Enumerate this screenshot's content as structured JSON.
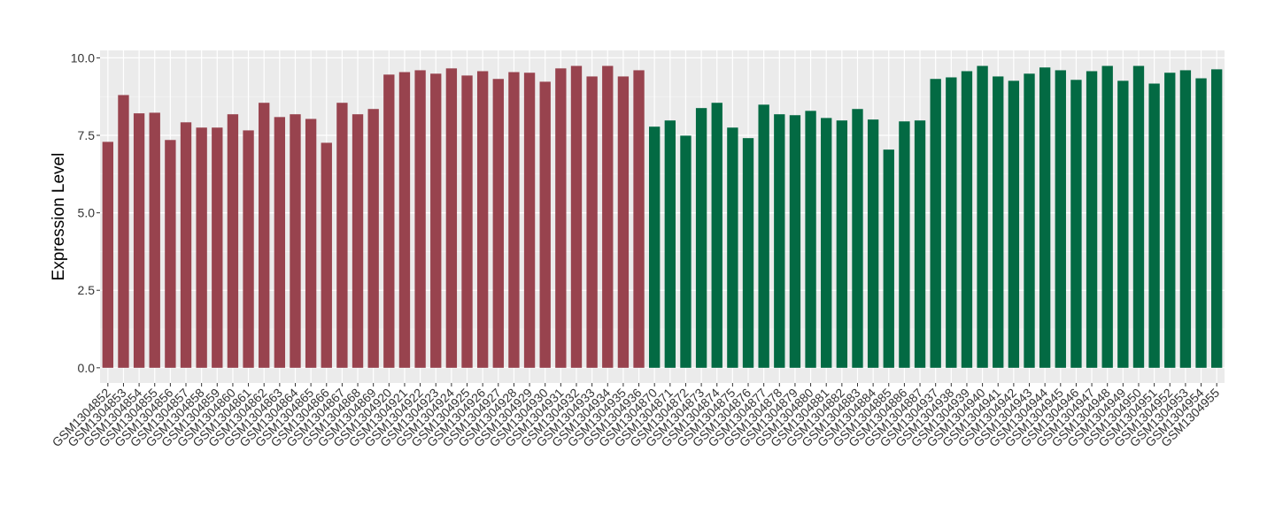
{
  "chart_data": {
    "type": "bar",
    "y_label": "Expression Level",
    "categories": [
      "GSM1304852",
      "GSM1304853",
      "GSM1304854",
      "GSM1304855",
      "GSM1304856",
      "GSM1304857",
      "GSM1304858",
      "GSM1304859",
      "GSM1304860",
      "GSM1304861",
      "GSM1304862",
      "GSM1304863",
      "GSM1304864",
      "GSM1304865",
      "GSM1304866",
      "GSM1304867",
      "GSM1304868",
      "GSM1304869",
      "GSM1304920",
      "GSM1304921",
      "GSM1304922",
      "GSM1304923",
      "GSM1304924",
      "GSM1304925",
      "GSM1304926",
      "GSM1304927",
      "GSM1304928",
      "GSM1304929",
      "GSM1304930",
      "GSM1304931",
      "GSM1304932",
      "GSM1304933",
      "GSM1304934",
      "GSM1304935",
      "GSM1304936",
      "GSM1304870",
      "GSM1304871",
      "GSM1304872",
      "GSM1304873",
      "GSM1304874",
      "GSM1304875",
      "GSM1304876",
      "GSM1304877",
      "GSM1304878",
      "GSM1304879",
      "GSM1304880",
      "GSM1304881",
      "GSM1304882",
      "GSM1304883",
      "GSM1304884",
      "GSM1304885",
      "GSM1304886",
      "GSM1304887",
      "GSM1304937",
      "GSM1304938",
      "GSM1304939",
      "GSM1304940",
      "GSM1304941",
      "GSM1304942",
      "GSM1304943",
      "GSM1304944",
      "GSM1304945",
      "GSM1304946",
      "GSM1304947",
      "GSM1304948",
      "GSM1304949",
      "GSM1304950",
      "GSM1304951",
      "GSM1304952",
      "GSM1304953",
      "GSM1304954",
      "GSM1304955"
    ],
    "series": [
      {
        "color": "#98434e",
        "values": [
          7.29,
          8.8,
          8.21,
          8.23,
          7.35,
          7.92,
          7.75,
          7.75,
          8.18,
          7.66,
          8.55,
          8.09,
          8.18,
          8.03,
          7.26,
          8.55,
          8.18,
          8.35,
          9.46,
          9.54,
          9.6,
          9.49,
          9.66,
          9.43,
          9.57,
          9.32,
          9.54,
          9.52,
          9.23,
          9.66,
          9.74,
          9.4,
          9.74,
          9.4,
          9.6,
          null,
          null,
          null,
          null,
          null,
          null,
          null,
          null,
          null,
          null,
          null,
          null,
          null,
          null,
          null,
          null,
          null,
          null,
          null,
          null,
          null,
          null,
          null,
          null,
          null,
          null,
          null,
          null,
          null,
          null,
          null,
          null,
          null,
          null,
          null,
          null,
          null
        ]
      },
      {
        "color": "#036a43",
        "values": [
          null,
          null,
          null,
          null,
          null,
          null,
          null,
          null,
          null,
          null,
          null,
          null,
          null,
          null,
          null,
          null,
          null,
          null,
          null,
          null,
          null,
          null,
          null,
          null,
          null,
          null,
          null,
          null,
          null,
          null,
          null,
          null,
          null,
          null,
          null,
          7.78,
          7.98,
          7.49,
          8.38,
          8.55,
          7.75,
          7.41,
          8.49,
          8.18,
          8.15,
          8.29,
          8.06,
          7.98,
          8.35,
          8.01,
          7.04,
          7.95,
          7.98,
          9.32,
          9.37,
          9.57,
          9.74,
          9.4,
          9.26,
          9.49,
          9.69,
          9.6,
          9.29,
          9.57,
          9.74,
          9.26,
          9.74,
          9.17,
          9.52,
          9.6,
          9.34,
          9.63
        ]
      }
    ],
    "ylim": [
      -0.49,
      10.24
    ],
    "yticks": [
      {
        "value": 0,
        "label": "0.0"
      },
      2.5,
      {
        "value": 5,
        "label": "5.0"
      },
      7.5,
      {
        "value": 10,
        "label": "10.0"
      }
    ],
    "grid": true
  }
}
